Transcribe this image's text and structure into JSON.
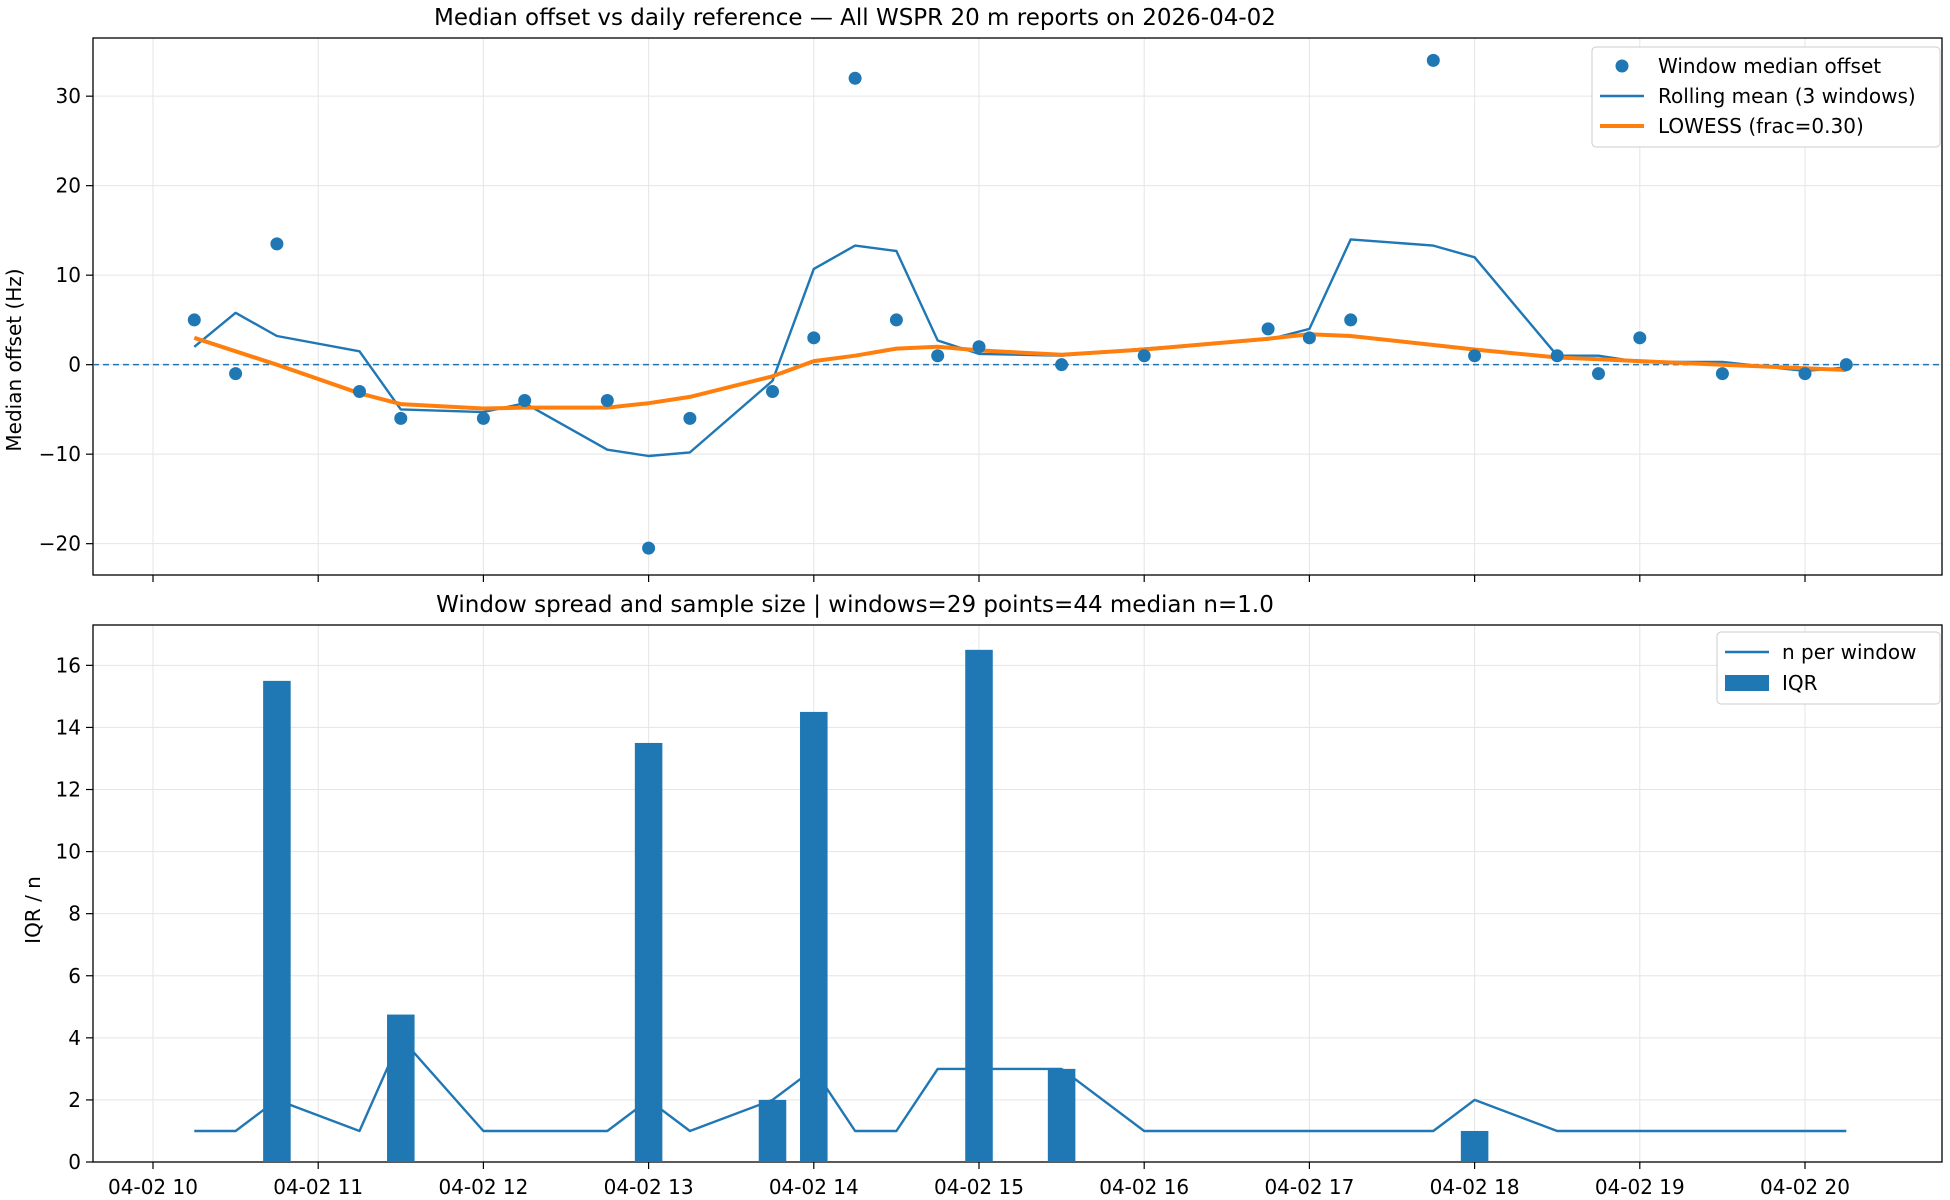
{
  "colors": {
    "primary": "#1f77b4",
    "orange": "#ff7f0e",
    "grid": "#e5e5e5",
    "axis": "#000000"
  },
  "chart_data": [
    {
      "type": "scatter",
      "title": "Median offset vs daily reference — All WSPR 20 m reports on 2026-04-02",
      "xlabel": "",
      "ylabel": "Median offset (Hz)",
      "xlim": [
        "2026-04-02T10:00",
        "2026-04-02T20:45"
      ],
      "ylim": [
        -23.5,
        36.5
      ],
      "yticks": [
        -20,
        -10,
        0,
        10,
        20,
        30
      ],
      "grid": true,
      "legend_position": "top-right",
      "reference_line": 0,
      "x": [
        "10:15",
        "10:30",
        "10:45",
        "11:15",
        "11:30",
        "12:00",
        "12:15",
        "12:45",
        "13:00",
        "13:15",
        "13:45",
        "14:00",
        "14:15",
        "14:30",
        "14:45",
        "15:00",
        "15:30",
        "16:00",
        "16:45",
        "17:00",
        "17:15",
        "17:45",
        "18:00",
        "18:30",
        "18:45",
        "19:00",
        "19:30",
        "20:00",
        "20:15"
      ],
      "series": [
        {
          "name": "Window median offset",
          "kind": "scatter",
          "values": [
            5,
            -1,
            13.5,
            -3,
            -6,
            -6,
            -4,
            -4,
            -20.5,
            -6,
            -3,
            3,
            32,
            5,
            1,
            2,
            0,
            1,
            4,
            3,
            5,
            34,
            1,
            1,
            -1,
            3,
            -1,
            -1,
            0
          ]
        },
        {
          "name": "Rolling mean (3 windows)",
          "kind": "line",
          "values": [
            2,
            5.8,
            3.2,
            1.5,
            -5,
            -5.3,
            -4.3,
            -9.5,
            -10.2,
            -9.8,
            -1.8,
            10.7,
            13.3,
            12.7,
            2.7,
            1.2,
            1,
            1.8,
            2.8,
            4,
            14,
            13.3,
            12,
            1,
            1,
            0.3,
            0.3,
            -0.7,
            -0.3
          ]
        },
        {
          "name": "LOWESS (frac=0.30)",
          "kind": "line",
          "values": [
            3,
            1.5,
            0,
            -3.2,
            -4.4,
            -4.9,
            -4.8,
            -4.8,
            -4.3,
            -3.6,
            -1.3,
            0.4,
            1,
            1.8,
            2,
            1.6,
            1.1,
            1.7,
            2.9,
            3.4,
            3.2,
            2.2,
            1.7,
            0.8,
            0.6,
            0.4,
            0,
            -0.4,
            -0.6
          ]
        }
      ]
    },
    {
      "type": "bar",
      "title": "Window spread and sample size | windows=29 points=44 median n=1.0",
      "xlabel": "",
      "ylabel": "IQR / n",
      "xlim": [
        "2026-04-02T10:00",
        "2026-04-02T20:45"
      ],
      "ylim": [
        0,
        17.3
      ],
      "yticks": [
        0,
        2,
        4,
        6,
        8,
        10,
        12,
        14,
        16
      ],
      "grid": true,
      "legend_position": "top-right",
      "x_tick_labels": [
        "04-02 10",
        "04-02 11",
        "04-02 12",
        "04-02 13",
        "04-02 14",
        "04-02 15",
        "04-02 16",
        "04-02 17",
        "04-02 18",
        "04-02 19",
        "04-02 20"
      ],
      "x": [
        "10:15",
        "10:30",
        "10:45",
        "11:15",
        "11:30",
        "12:00",
        "12:15",
        "12:45",
        "13:00",
        "13:15",
        "13:45",
        "14:00",
        "14:15",
        "14:30",
        "14:45",
        "15:00",
        "15:30",
        "16:00",
        "16:45",
        "17:00",
        "17:15",
        "17:45",
        "18:00",
        "18:30",
        "18:45",
        "19:00",
        "19:30",
        "20:00",
        "20:15"
      ],
      "series": [
        {
          "name": "n per window",
          "kind": "line",
          "values": [
            1,
            1,
            2,
            1,
            4,
            1,
            1,
            1,
            2,
            1,
            2,
            3,
            1,
            1,
            3,
            3,
            3,
            1,
            1,
            1,
            1,
            1,
            2,
            1,
            1,
            1,
            1,
            1,
            1
          ]
        },
        {
          "name": "IQR",
          "kind": "bar",
          "bars": [
            {
              "x": "10:45",
              "value": 15.5
            },
            {
              "x": "11:30",
              "value": 4.75
            },
            {
              "x": "13:00",
              "value": 13.5
            },
            {
              "x": "13:45",
              "value": 2
            },
            {
              "x": "14:00",
              "value": 14.5
            },
            {
              "x": "15:00",
              "value": 16.5
            },
            {
              "x": "15:30",
              "value": 3
            },
            {
              "x": "18:00",
              "value": 1
            }
          ]
        }
      ]
    }
  ]
}
